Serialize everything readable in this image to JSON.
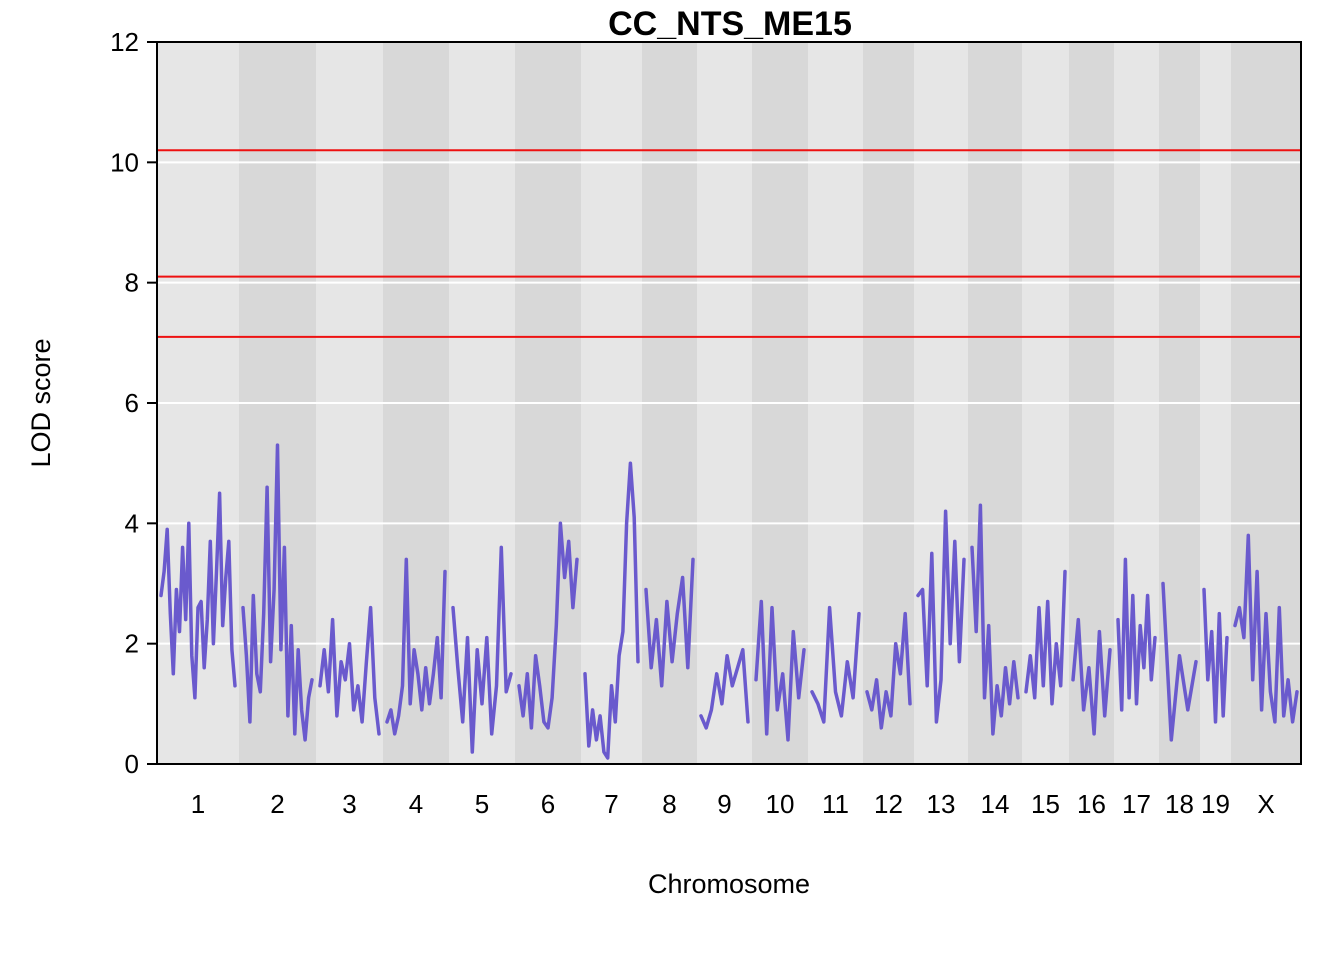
{
  "chart_data": {
    "type": "line",
    "title": "CC_NTS_ME15",
    "xlabel": "Chromosome",
    "ylabel": "LOD score",
    "ylim": [
      0,
      12
    ],
    "yticks": [
      "0",
      "2",
      "4",
      "6",
      "8",
      "10",
      "12"
    ],
    "grid": true,
    "chromosomes": [
      "1",
      "2",
      "3",
      "4",
      "5",
      "6",
      "7",
      "8",
      "9",
      "10",
      "11",
      "12",
      "13",
      "14",
      "15",
      "16",
      "17",
      "18",
      "19",
      "X"
    ],
    "thresholds": [
      10.2,
      8.1,
      7.1
    ],
    "series": [
      {
        "values": [
          [
            2.8,
            3.2,
            3.9,
            2.5,
            1.5,
            2.9,
            2.2,
            3.6,
            2.4,
            4.0,
            1.8,
            1.1,
            2.6,
            2.7,
            1.6,
            2.4,
            3.7,
            2.0,
            3.2,
            4.5,
            2.3,
            3.1,
            3.7,
            1.9,
            1.3
          ],
          [
            2.6,
            1.8,
            0.7,
            2.8,
            1.5,
            1.2,
            2.5,
            4.6,
            1.7,
            2.9,
            5.3,
            1.9,
            3.6,
            0.8,
            2.3,
            0.5,
            1.9,
            0.9,
            0.4,
            1.1,
            1.4
          ],
          [
            1.3,
            1.9,
            1.2,
            2.4,
            0.8,
            1.7,
            1.4,
            2.0,
            0.9,
            1.3,
            0.7,
            1.7,
            2.6,
            1.1,
            0.5
          ],
          [
            0.7,
            0.9,
            0.5,
            0.8,
            1.3,
            3.4,
            1.0,
            1.9,
            1.5,
            0.9,
            1.6,
            1.0,
            1.5,
            2.1,
            1.1,
            3.2
          ],
          [
            2.6,
            1.6,
            0.7,
            2.1,
            0.2,
            1.9,
            1.0,
            2.1,
            0.5,
            1.3,
            3.6,
            1.2,
            1.5
          ],
          [
            1.3,
            0.8,
            1.5,
            0.6,
            1.8,
            1.3,
            0.7,
            0.6,
            1.1,
            2.3,
            4.0,
            3.1,
            3.7,
            2.6,
            3.4
          ],
          [
            1.5,
            0.3,
            0.9,
            0.4,
            0.8,
            0.2,
            0.1,
            1.3,
            0.7,
            1.8,
            2.2,
            4.0,
            5.0,
            4.1,
            1.7
          ],
          [
            2.9,
            1.6,
            2.4,
            1.3,
            2.7,
            1.7,
            2.5,
            3.1,
            1.6,
            3.4
          ],
          [
            0.8,
            0.6,
            0.9,
            1.5,
            1.0,
            1.8,
            1.3,
            1.6,
            1.9,
            0.7
          ],
          [
            1.4,
            2.7,
            0.5,
            2.6,
            0.9,
            1.5,
            0.4,
            2.2,
            1.1,
            1.9
          ],
          [
            1.2,
            1.0,
            0.7,
            2.6,
            1.2,
            0.8,
            1.7,
            1.1,
            2.5
          ],
          [
            1.2,
            0.9,
            1.4,
            0.6,
            1.2,
            0.8,
            2.0,
            1.5,
            2.5,
            1.0
          ],
          [
            2.8,
            2.9,
            1.3,
            3.5,
            0.7,
            1.4,
            4.2,
            2.0,
            3.7,
            1.7,
            3.4
          ],
          [
            3.6,
            2.2,
            4.3,
            1.1,
            2.3,
            0.5,
            1.3,
            0.8,
            1.6,
            1.0,
            1.7,
            1.1
          ],
          [
            1.2,
            1.8,
            1.1,
            2.6,
            1.3,
            2.7,
            1.0,
            2.0,
            1.3,
            3.2
          ],
          [
            1.4,
            2.4,
            0.9,
            1.6,
            0.5,
            2.2,
            0.8,
            1.9
          ],
          [
            2.4,
            0.9,
            3.4,
            1.1,
            2.8,
            1.0,
            2.3,
            1.6,
            2.8,
            1.4,
            2.1
          ],
          [
            3.0,
            0.4,
            1.8,
            0.9,
            1.7
          ],
          [
            2.9,
            1.4,
            2.2,
            0.7,
            2.5,
            0.8,
            2.1
          ],
          [
            2.3,
            2.6,
            2.1,
            3.8,
            1.4,
            3.2,
            0.9,
            2.5,
            1.2,
            0.7,
            2.6,
            0.8,
            1.4,
            0.7,
            1.2
          ]
        ]
      }
    ]
  }
}
